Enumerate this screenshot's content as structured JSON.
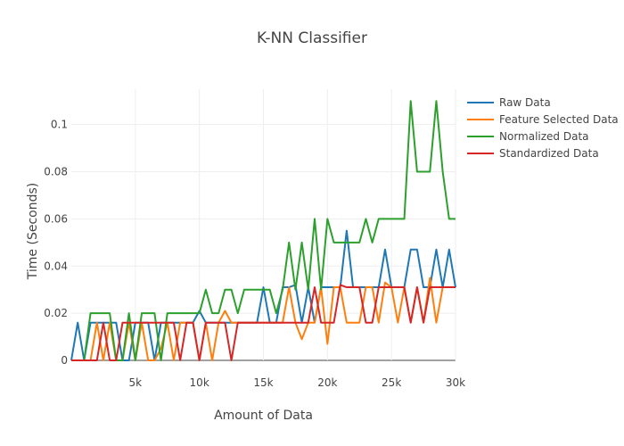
{
  "chart_data": {
    "type": "line",
    "title": "K-NN Classifier",
    "xlabel": "Amount of Data",
    "ylabel": "Time (Seconds)",
    "xlim": [
      0,
      30000
    ],
    "ylim": [
      0,
      0.115
    ],
    "x_ticks": [
      5000,
      10000,
      15000,
      20000,
      25000,
      30000
    ],
    "x_tick_labels": [
      "5k",
      "10k",
      "15k",
      "20k",
      "25k",
      "30k"
    ],
    "y_ticks": [
      0,
      0.02,
      0.04,
      0.06,
      0.08,
      0.1
    ],
    "y_tick_labels": [
      "0",
      "0.02",
      "0.04",
      "0.06",
      "0.08",
      "0.1"
    ],
    "legend_position": "top-right",
    "x": [
      0,
      500,
      1000,
      1500,
      2000,
      2500,
      3000,
      3500,
      4000,
      4500,
      5000,
      5500,
      6000,
      6500,
      7000,
      7500,
      8000,
      8500,
      9000,
      9500,
      10000,
      10500,
      11000,
      11500,
      12000,
      12500,
      13000,
      13500,
      14000,
      14500,
      15000,
      15500,
      16000,
      16500,
      17000,
      17500,
      18000,
      18500,
      19000,
      19500,
      20000,
      20500,
      21000,
      21500,
      22000,
      22500,
      23000,
      23500,
      24000,
      24500,
      25000,
      25500,
      26000,
      26500,
      27000,
      27500,
      28000,
      28500,
      29000,
      29500,
      30000
    ],
    "series": [
      {
        "name": "Raw Data",
        "color": "#1f77b4",
        "values": [
          0,
          0.016,
          0,
          0.016,
          0.016,
          0.016,
          0.016,
          0.016,
          0,
          0,
          0.016,
          0.016,
          0.016,
          0,
          0.016,
          0.016,
          0.016,
          0.016,
          0.016,
          0.016,
          0.021,
          0.016,
          0.016,
          0.016,
          0.016,
          0.016,
          0.016,
          0.016,
          0.016,
          0.016,
          0.031,
          0.016,
          0.016,
          0.031,
          0.031,
          0.032,
          0.016,
          0.031,
          0.016,
          0.031,
          0.031,
          0.031,
          0.031,
          0.055,
          0.031,
          0.031,
          0.031,
          0.031,
          0.031,
          0.047,
          0.031,
          0.031,
          0.031,
          0.047,
          0.047,
          0.031,
          0.031,
          0.047,
          0.031,
          0.047,
          0.031
        ]
      },
      {
        "name": "Feature Selected Data",
        "color": "#ff7f0e",
        "values": [
          0,
          0,
          0,
          0,
          0.016,
          0,
          0.016,
          0,
          0,
          0.016,
          0,
          0.016,
          0,
          0,
          0.005,
          0.016,
          0,
          0.016,
          0.016,
          0.016,
          0,
          0.016,
          0,
          0.016,
          0.021,
          0.016,
          0.016,
          0.016,
          0.016,
          0.016,
          0.016,
          0.016,
          0.016,
          0.016,
          0.031,
          0.016,
          0.009,
          0.016,
          0.016,
          0.031,
          0.007,
          0.031,
          0.031,
          0.016,
          0.016,
          0.016,
          0.031,
          0.031,
          0.016,
          0.033,
          0.031,
          0.016,
          0.031,
          0.016,
          0.031,
          0.016,
          0.035,
          0.016,
          0.031,
          0.031,
          0.031
        ]
      },
      {
        "name": "Normalized Data",
        "color": "#2ca02c",
        "values": [
          0,
          0,
          0,
          0.02,
          0.02,
          0.02,
          0.02,
          0,
          0,
          0.02,
          0,
          0.02,
          0.02,
          0.02,
          0,
          0.02,
          0.02,
          0.02,
          0.02,
          0.02,
          0.02,
          0.03,
          0.02,
          0.02,
          0.03,
          0.03,
          0.02,
          0.03,
          0.03,
          0.03,
          0.03,
          0.03,
          0.02,
          0.03,
          0.05,
          0.03,
          0.05,
          0.03,
          0.06,
          0.03,
          0.06,
          0.05,
          0.05,
          0.05,
          0.05,
          0.05,
          0.06,
          0.05,
          0.06,
          0.06,
          0.06,
          0.06,
          0.06,
          0.11,
          0.08,
          0.08,
          0.08,
          0.11,
          0.08,
          0.06,
          0.06
        ]
      },
      {
        "name": "Standardized Data",
        "color": "#d62728",
        "values": [
          0,
          0,
          0,
          0,
          0,
          0.016,
          0,
          0,
          0.016,
          0.016,
          0.016,
          0.016,
          0.016,
          0.016,
          0.016,
          0.016,
          0.016,
          0,
          0.016,
          0.016,
          0,
          0.016,
          0.016,
          0.016,
          0.016,
          0,
          0.016,
          0.016,
          0.016,
          0.016,
          0.016,
          0.016,
          0.016,
          0.016,
          0.016,
          0.016,
          0.016,
          0.016,
          0.031,
          0.016,
          0.016,
          0.016,
          0.032,
          0.031,
          0.031,
          0.031,
          0.016,
          0.016,
          0.031,
          0.031,
          0.031,
          0.031,
          0.031,
          0.016,
          0.031,
          0.016,
          0.031,
          0.031,
          0.031,
          0.031,
          0.031
        ]
      }
    ]
  }
}
